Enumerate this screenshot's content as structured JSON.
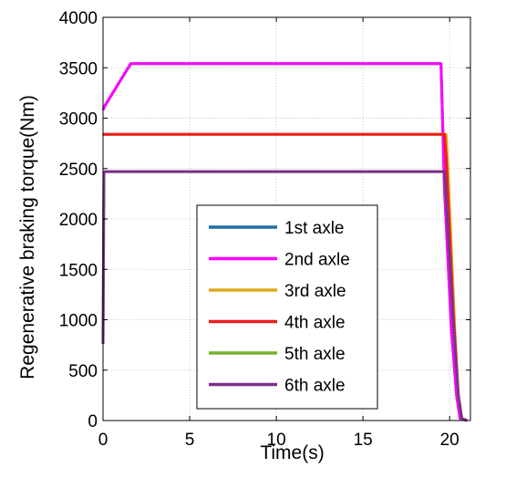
{
  "chart_data": {
    "type": "line",
    "xlabel": "Time(s)",
    "ylabel": "Regenerative braking torque(Nm)",
    "xlim": [
      0,
      21.2
    ],
    "ylim": [
      0,
      4000
    ],
    "xticks": [
      0,
      5,
      10,
      15,
      20
    ],
    "yticks": [
      0,
      500,
      1000,
      1500,
      2000,
      2500,
      3000,
      3500,
      4000
    ],
    "grid": true,
    "legend_position": "center",
    "series": [
      {
        "name": "1st axle",
        "color": "#1f6fa8",
        "x": [
          0,
          0.1,
          1.6,
          19.5,
          19.55,
          19.7,
          20.1,
          20.4,
          20.6,
          21.0
        ],
        "y": [
          3080,
          3120,
          3540,
          3540,
          3250,
          2300,
          900,
          250,
          20,
          0
        ]
      },
      {
        "name": "2nd axle",
        "color": "#ff00ff",
        "x": [
          0,
          0.1,
          1.6,
          19.5,
          19.55,
          19.7,
          20.1,
          20.4,
          20.6,
          21.0
        ],
        "y": [
          3080,
          3120,
          3540,
          3540,
          3250,
          2300,
          900,
          250,
          20,
          0
        ]
      },
      {
        "name": "3rd axle",
        "color": "#e0a81e",
        "x": [
          0,
          0.05,
          19.8,
          19.9,
          20.3,
          20.5,
          20.7,
          21.0
        ],
        "y": [
          2830,
          2840,
          2840,
          2500,
          900,
          250,
          20,
          0
        ]
      },
      {
        "name": "4th axle",
        "color": "#ee1c1c",
        "x": [
          0,
          0.05,
          19.7,
          19.8,
          20.2,
          20.5,
          20.7,
          21.0
        ],
        "y": [
          2830,
          2840,
          2840,
          2600,
          1100,
          250,
          20,
          0
        ]
      },
      {
        "name": "5th axle",
        "color": "#77b030",
        "x": [
          0,
          0.05,
          0.1,
          19.7,
          19.8,
          20.2,
          20.5,
          20.7,
          21.0
        ],
        "y": [
          760,
          2460,
          2470,
          2470,
          2200,
          1000,
          250,
          20,
          0
        ]
      },
      {
        "name": "6th axle",
        "color": "#7e2f8e",
        "x": [
          0,
          0.05,
          0.1,
          19.7,
          19.8,
          20.2,
          20.5,
          20.7,
          21.0
        ],
        "y": [
          760,
          2460,
          2470,
          2470,
          2200,
          1000,
          250,
          20,
          0
        ]
      }
    ]
  }
}
